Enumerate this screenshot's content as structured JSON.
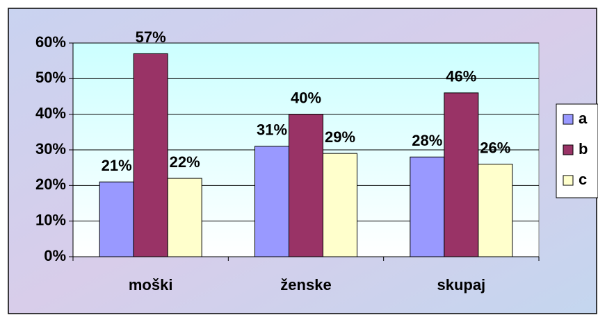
{
  "chart_data": {
    "type": "bar",
    "categories": [
      "moški",
      "ženske",
      "skupaj"
    ],
    "series": [
      {
        "name": "a",
        "color": "#9999ff",
        "values": [
          21,
          31,
          28
        ],
        "value_labels": [
          "21%",
          "31%",
          "28%"
        ]
      },
      {
        "name": "b",
        "color": "#993366",
        "values": [
          57,
          40,
          46
        ],
        "value_labels": [
          "57%",
          "40%",
          "46%"
        ]
      },
      {
        "name": "c",
        "color": "#ffffcc",
        "values": [
          22,
          29,
          26
        ],
        "value_labels": [
          "22%",
          "29%",
          "26%"
        ]
      }
    ],
    "ylim": [
      0,
      60
    ],
    "yticks": [
      {
        "value": 0,
        "label": "0%"
      },
      {
        "value": 10,
        "label": "10%"
      },
      {
        "value": 20,
        "label": "20%"
      },
      {
        "value": 30,
        "label": "30%"
      },
      {
        "value": 40,
        "label": "40%"
      },
      {
        "value": 50,
        "label": "50%"
      },
      {
        "value": 60,
        "label": "60%"
      }
    ],
    "grid": true,
    "legend": "right"
  }
}
